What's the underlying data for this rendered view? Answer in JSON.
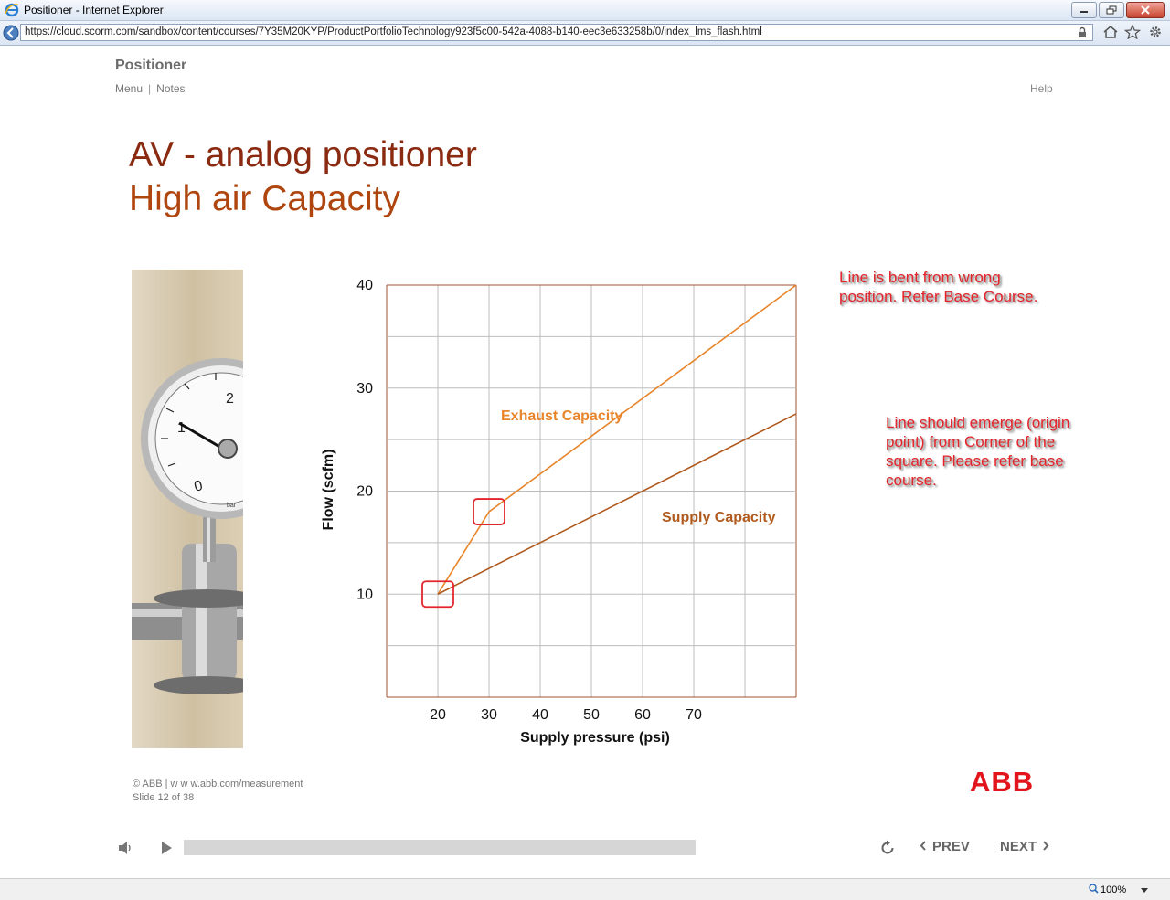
{
  "window": {
    "title": "Positioner - Internet Explorer"
  },
  "address": {
    "url": "https://cloud.scorm.com/sandbox/content/courses/7Y35M20KYP/ProductPortfolioTechnology923f5c00-542a-4088-b140-eec3e633258b/0/index_lms_flash.html"
  },
  "player": {
    "course_title": "Positioner",
    "nav": {
      "menu": "Menu",
      "sep": "|",
      "notes": "Notes",
      "help": "Help"
    }
  },
  "slide": {
    "title_line1": "AV - analog positioner",
    "title_line2": "High air Capacity",
    "annotations": [
      "Line is bent from wrong position. Refer Base Course.",
      "Line should emerge (origin point) from Corner of the square. Please refer base course."
    ],
    "footer": {
      "copyright": "© ABB | w w w.abb.com/measurement",
      "slide_counter": "Slide 12 of 38"
    },
    "logo_text": "ABB"
  },
  "chart_data": {
    "type": "line",
    "xlabel": "Supply pressure (psi)",
    "ylabel": "Flow (scfm)",
    "x_ticks": [
      20,
      30,
      40,
      50,
      60,
      70
    ],
    "y_ticks": [
      10,
      20,
      30,
      40
    ],
    "xlim": [
      10,
      90
    ],
    "ylim": [
      0,
      40
    ],
    "grid": true,
    "series": [
      {
        "name": "Exhaust Capacity",
        "color": "#e8852a",
        "points": [
          [
            20,
            10
          ],
          [
            30,
            18
          ],
          [
            90,
            40
          ]
        ]
      },
      {
        "name": "Supply Capacity",
        "color": "#b05a1e",
        "points": [
          [
            20,
            10
          ],
          [
            90,
            27.5
          ]
        ]
      }
    ],
    "highlight_boxes": [
      [
        20,
        10
      ],
      [
        30,
        18
      ]
    ]
  },
  "controls": {
    "prev": "PREV",
    "next": "NEXT",
    "progress_fraction": 0.0
  },
  "statusbar": {
    "zoom": "100%"
  }
}
